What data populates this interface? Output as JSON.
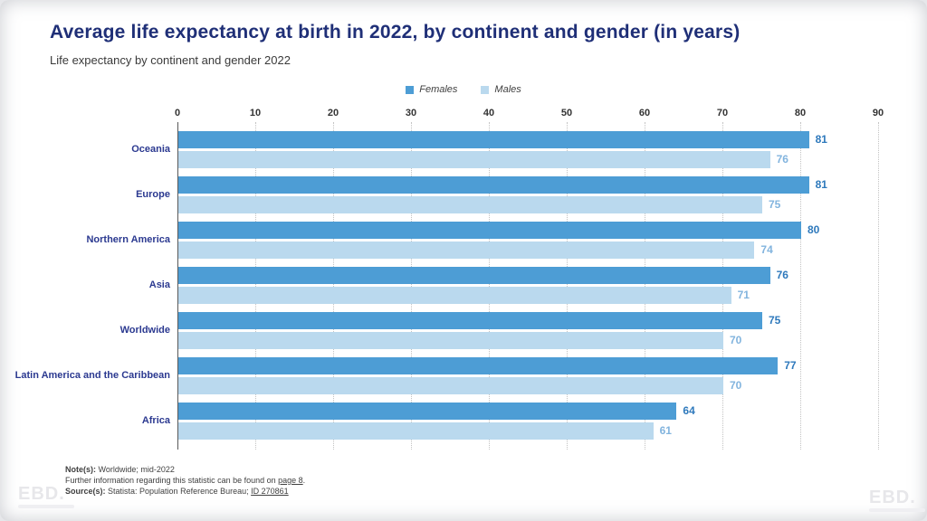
{
  "header": {
    "title": "Average life expectancy at birth in 2022, by continent and gender (in years)",
    "subtitle": "Life expectancy by continent and gender 2022"
  },
  "colors": {
    "female_bar": "#4d9dd5",
    "male_bar": "#bad9ee",
    "female_value_label": "#2e79bc",
    "male_value_label": "#82b4de",
    "title_text": "#1f2f77",
    "category_text": "#2b3990"
  },
  "chart_data": {
    "type": "bar",
    "orientation": "horizontal",
    "title": "Life expectancy by continent and gender 2022",
    "categories": [
      "Oceania",
      "Europe",
      "Northern America",
      "Asia",
      "Worldwide",
      "Latin America and the Caribbean",
      "Africa"
    ],
    "series": [
      {
        "name": "Females",
        "values": [
          81,
          81,
          80,
          76,
          75,
          77,
          64
        ]
      },
      {
        "name": "Males",
        "values": [
          76,
          75,
          74,
          71,
          70,
          70,
          61
        ]
      }
    ],
    "xlim": [
      0,
      90
    ],
    "xticks": [
      0,
      10,
      20,
      30,
      40,
      50,
      60,
      70,
      80,
      90
    ],
    "grid": "vertical-dotted",
    "legend_position": "top-center",
    "value_labels": true
  },
  "footer": {
    "note_label": "Note(s):",
    "note_text": " Worldwide; mid-2022",
    "info_text_before": "Further information regarding this statistic can be found on ",
    "info_link": "page 8",
    "info_text_after": ".",
    "source_label": "Source(s):",
    "source_text": " Statista: Population Reference Bureau; ",
    "source_link": "ID 270861"
  },
  "watermark": {
    "text": "EBD."
  }
}
